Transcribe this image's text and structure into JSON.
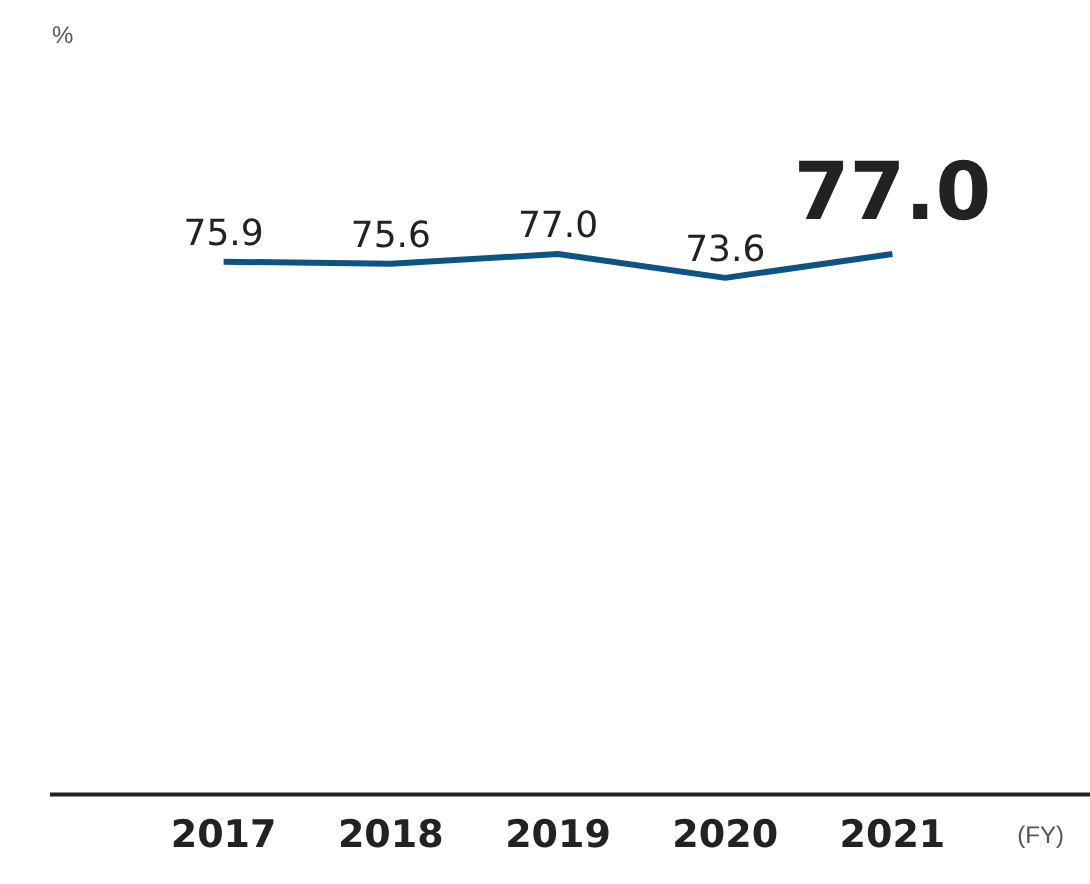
{
  "chart_data": {
    "type": "line",
    "xlabel": "(FY)",
    "categories": [
      "2017",
      "2018",
      "2019",
      "2020",
      "2021"
    ],
    "series": [
      {
        "color": "#0d5482",
        "values": [
          75.9,
          75.6,
          77.0,
          73.6,
          77.0
        ],
        "value_labels": [
          "75.9",
          "75.6",
          "77.0",
          "73.6",
          "77.0"
        ]
      }
    ],
    "annotations": [
      "%"
    ],
    "tick_labels": "x",
    "marker": "none",
    "legend": false,
    "grid": false
  }
}
